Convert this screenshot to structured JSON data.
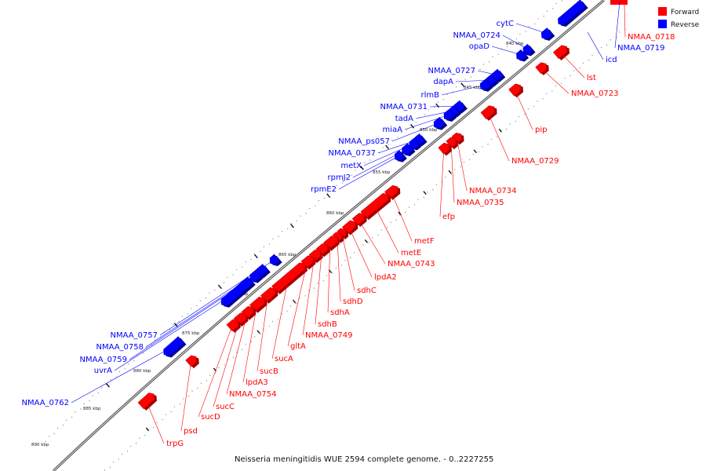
{
  "legend": {
    "forward": {
      "label": "Forward",
      "color": "#ff0000"
    },
    "reverse": {
      "label": "Reverse",
      "color": "#0000ff"
    }
  },
  "caption": "Neisseria meningitidis WUE 2594 complete genome. - 0..2227255",
  "colors": {
    "backbone": "#888888",
    "label_line_forward": "#ff0000",
    "label_line_reverse": "#0000ff"
  },
  "ruler_labels": [
    "840 kbp",
    "845 kbp",
    "850 kbp",
    "855 kbp",
    "860 kbp",
    "865 kbp",
    "870 kbp",
    "875 kbp",
    "880 kbp",
    "885 kbp",
    "890 kbp"
  ],
  "reverse_genes": [
    "cytC",
    "NMAA_0724",
    "opaD",
    "NMAA_0727",
    "dapA",
    "rlmB",
    "NMAA_0731",
    "tadA",
    "miaA",
    "NMAA_ps057",
    "NMAA_0737",
    "metX",
    "rpmJ2",
    "rpmE2",
    "NMAA_0757",
    "NMAA_0758",
    "NMAA_0759",
    "uvrA",
    "NMAA_0762",
    "icd",
    "NMAA_0719"
  ],
  "forward_genes": [
    "NMAA_0718",
    "lst",
    "NMAA_0723",
    "pip",
    "NMAA_0729",
    "NMAA_0734",
    "NMAA_0735",
    "efp",
    "metF",
    "metE",
    "NMAA_0743",
    "lpdA2",
    "sdhC",
    "sdhD",
    "sdhA",
    "sdhB",
    "NMAA_0749",
    "gltA",
    "sucA",
    "sucB",
    "lpdA3",
    "NMAA_0754",
    "sucC",
    "sucD",
    "psd",
    "trpG"
  ]
}
